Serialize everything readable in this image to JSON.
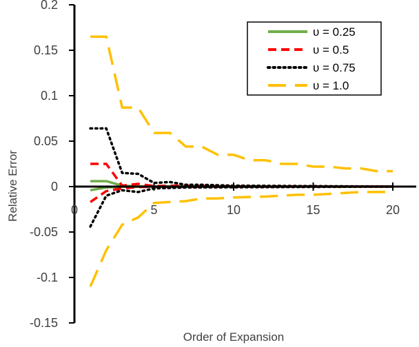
{
  "chart_data": {
    "type": "line",
    "xlabel": "Order of Expansion",
    "ylabel": "Relative Error",
    "xlim": [
      0,
      20
    ],
    "ylim": [
      -0.15,
      0.2
    ],
    "xticks": [
      "0",
      "5",
      "10",
      "15",
      "20"
    ],
    "yticks": [
      "0.2",
      "0.15",
      "0.1",
      "0.05",
      "0",
      "-0.05",
      "-0.1",
      "-0.15"
    ],
    "grid": false,
    "legend_position": "top-right",
    "series": [
      {
        "name": "υ = 0.25",
        "color": "#70ad47",
        "style": "solid",
        "upper": [
          [
            1,
            0.006
          ],
          [
            2,
            0.006
          ],
          [
            3,
            0.001
          ],
          [
            4,
            0.0003
          ],
          [
            5,
            0.0002
          ],
          [
            10,
            0.0001
          ],
          [
            20,
            0.0
          ]
        ],
        "lower": [
          [
            1,
            -0.004
          ],
          [
            2,
            -0.001
          ],
          [
            3,
            -0.0002
          ],
          [
            5,
            -0.0001
          ],
          [
            20,
            0.0
          ]
        ]
      },
      {
        "name": "υ = 0.5",
        "color": "#ff0000",
        "style": "dash",
        "upper": [
          [
            1,
            0.025
          ],
          [
            2,
            0.025
          ],
          [
            3,
            0.001
          ],
          [
            4,
            0.003
          ],
          [
            5,
            0.0005
          ],
          [
            6,
            0.001
          ],
          [
            10,
            0.0003
          ],
          [
            20,
            0.0
          ]
        ],
        "lower": [
          [
            1,
            -0.017
          ],
          [
            2,
            -0.005
          ],
          [
            3,
            -0.002
          ],
          [
            4,
            -0.0005
          ],
          [
            5,
            -0.0003
          ],
          [
            20,
            0.0
          ]
        ]
      },
      {
        "name": "υ = 0.75",
        "color": "#000000",
        "style": "dot",
        "upper": [
          [
            1,
            0.064
          ],
          [
            2,
            0.064
          ],
          [
            3,
            0.015
          ],
          [
            4,
            0.014
          ],
          [
            5,
            0.004
          ],
          [
            6,
            0.005
          ],
          [
            7,
            0.002
          ],
          [
            8,
            0.002
          ],
          [
            10,
            0.001
          ],
          [
            15,
            0.0005
          ],
          [
            20,
            0.0
          ]
        ],
        "lower": [
          [
            1,
            -0.044
          ],
          [
            2,
            -0.01
          ],
          [
            3,
            -0.004
          ],
          [
            4,
            -0.006
          ],
          [
            5,
            -0.002
          ],
          [
            7,
            -0.001
          ],
          [
            20,
            0.0
          ]
        ]
      },
      {
        "name": "υ = 1.0",
        "color": "#ffc000",
        "style": "longdash",
        "upper": [
          [
            1,
            0.165
          ],
          [
            2,
            0.165
          ],
          [
            3,
            0.087
          ],
          [
            4,
            0.087
          ],
          [
            5,
            0.059
          ],
          [
            6,
            0.059
          ],
          [
            7,
            0.044
          ],
          [
            8,
            0.044
          ],
          [
            9,
            0.035
          ],
          [
            10,
            0.035
          ],
          [
            11,
            0.029
          ],
          [
            12,
            0.029
          ],
          [
            13,
            0.025
          ],
          [
            14,
            0.025
          ],
          [
            15,
            0.022
          ],
          [
            16,
            0.022
          ],
          [
            17,
            0.02
          ],
          [
            18,
            0.02
          ],
          [
            19,
            0.017
          ],
          [
            20,
            0.017
          ]
        ],
        "lower": [
          [
            1,
            -0.11
          ],
          [
            2,
            -0.07
          ],
          [
            3,
            -0.042
          ],
          [
            4,
            -0.034
          ],
          [
            5,
            -0.018
          ],
          [
            6,
            -0.017
          ],
          [
            7,
            -0.016
          ],
          [
            8,
            -0.013
          ],
          [
            9,
            -0.013
          ],
          [
            10,
            -0.012
          ],
          [
            12,
            -0.011
          ],
          [
            13,
            -0.01
          ],
          [
            14,
            -0.009
          ],
          [
            15,
            -0.009
          ],
          [
            16,
            -0.008
          ],
          [
            17,
            -0.007
          ],
          [
            18,
            -0.006
          ],
          [
            19,
            -0.006
          ],
          [
            20,
            -0.006
          ]
        ]
      }
    ]
  }
}
